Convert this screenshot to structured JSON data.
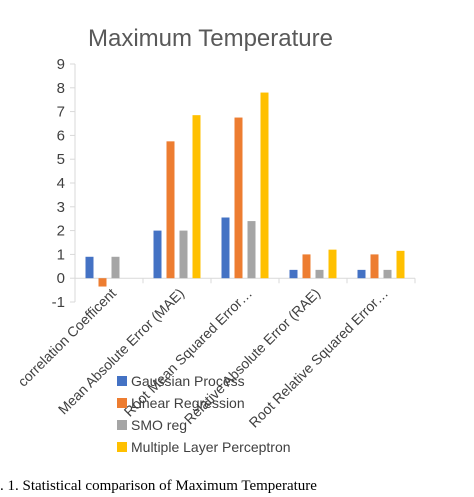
{
  "caption": ". 1. Statistical comparison of  Maximum Temperature",
  "chart_data": {
    "type": "bar",
    "title": "Maximum Temperature",
    "categories": [
      "correlation Coefficent",
      "Mean Absolute Error (MAE)",
      "Root Mean Squared Error…",
      "Relative Absolute Error (RAE)",
      "Root Relative Squared Error…"
    ],
    "series": [
      {
        "name": "Gaussian Process",
        "color": "#4472C4",
        "values": [
          0.9,
          2.0,
          2.55,
          0.35,
          0.35
        ]
      },
      {
        "name": "Linear Regression",
        "color": "#ED7D31",
        "values": [
          -0.35,
          5.75,
          6.75,
          1.0,
          1.0
        ]
      },
      {
        "name": "SMO reg",
        "color": "#A5A5A5",
        "values": [
          0.9,
          2.0,
          2.4,
          0.35,
          0.35
        ]
      },
      {
        "name": "Multiple Layer Perceptron",
        "color": "#FFC000",
        "values": [
          0.0,
          6.85,
          7.8,
          1.2,
          1.15
        ]
      }
    ],
    "yticks": [
      "9",
      "8",
      "7",
      "6",
      "5",
      "4",
      "3",
      "2",
      "1",
      "0",
      "-1"
    ],
    "ylim": [
      -1,
      9
    ],
    "grid": false,
    "legend_position": "bottom"
  }
}
